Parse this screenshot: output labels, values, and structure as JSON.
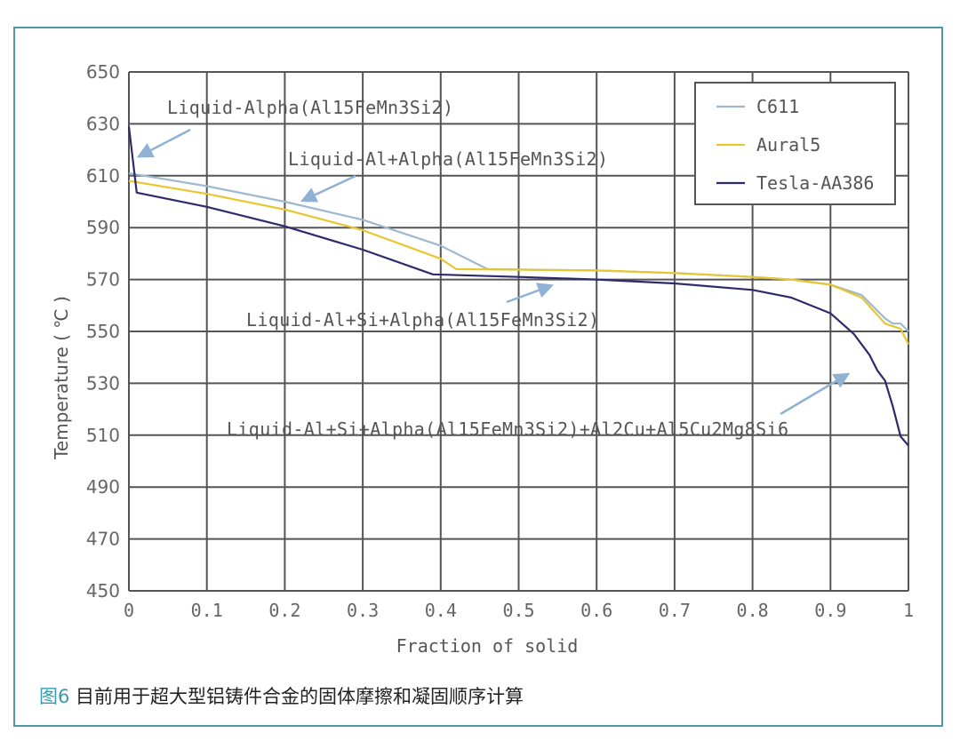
{
  "caption": {
    "figure_label": "图6",
    "text": " 目前用于超大型铝铸件合金的固体摩擦和凝固顺序计算"
  },
  "colors": {
    "frame": "#4f98a6",
    "grid": "#555555",
    "C611": "#9db8d0",
    "Aural5": "#e8c630",
    "Tesla-AA386": "#2e2a6b",
    "arrow": "#8fb1d3"
  },
  "chart_data": {
    "type": "line",
    "title": "",
    "xlabel": "Fraction of solid",
    "ylabel": "Temperature ( ℃ )",
    "xlim": [
      0,
      1
    ],
    "ylim": [
      450,
      650
    ],
    "grid": true,
    "legend_position": "upper right",
    "x_ticks": [
      "0",
      "0.1",
      "0.2",
      "0.3",
      "0.4",
      "0.5",
      "0.6",
      "0.7",
      "0.8",
      "0.9",
      "1"
    ],
    "y_ticks": [
      "650",
      "630",
      "610",
      "590",
      "570",
      "550",
      "530",
      "510",
      "490",
      "470",
      "450"
    ],
    "series": [
      {
        "name": "C611",
        "x": [
          0,
          0.1,
          0.2,
          0.3,
          0.4,
          0.46,
          0.6,
          0.7,
          0.8,
          0.85,
          0.9,
          0.94,
          0.97,
          0.98,
          0.99,
          1.0
        ],
        "y": [
          611,
          606,
          600,
          593,
          583,
          574,
          573.5,
          572.5,
          571,
          570,
          568,
          564,
          555,
          553,
          553,
          550
        ]
      },
      {
        "name": "Aural5",
        "x": [
          0,
          0.1,
          0.2,
          0.3,
          0.4,
          0.42,
          0.6,
          0.7,
          0.8,
          0.85,
          0.9,
          0.94,
          0.97,
          0.98,
          0.99,
          1.0
        ],
        "y": [
          608,
          603,
          597,
          589,
          578,
          574,
          573.5,
          572.5,
          571,
          570,
          568,
          563,
          553,
          552,
          551,
          545
        ]
      },
      {
        "name": "Tesla-AA386",
        "x": [
          0,
          0.01,
          0.1,
          0.2,
          0.3,
          0.39,
          0.5,
          0.6,
          0.7,
          0.8,
          0.85,
          0.9,
          0.93,
          0.95,
          0.96,
          0.97,
          0.98,
          0.99,
          1.0
        ],
        "y": [
          629,
          603.5,
          598,
          590.5,
          581.5,
          572,
          571,
          570,
          568.5,
          566,
          563,
          557,
          549,
          541,
          535,
          531,
          521,
          509.5,
          506
        ]
      }
    ],
    "annotations": [
      {
        "text": "Liquid-Alpha(Al15FeMn3Si2)",
        "arrow_to": [
          0.01,
          617
        ]
      },
      {
        "text": "Liquid-Al+Alpha(Al15FeMn3Si2)",
        "arrow_to": [
          0.22,
          600
        ]
      },
      {
        "text": "Liquid-Al+Si+Alpha(Al15FeMn3Si2)",
        "arrow_to": [
          0.545,
          568
        ]
      },
      {
        "text": "Liquid-Al+Si+Alpha(Al15FeMn3Si2)+Al2Cu+Al5Cu2Mg8Si6",
        "arrow_to": [
          0.925,
          534
        ]
      }
    ]
  }
}
